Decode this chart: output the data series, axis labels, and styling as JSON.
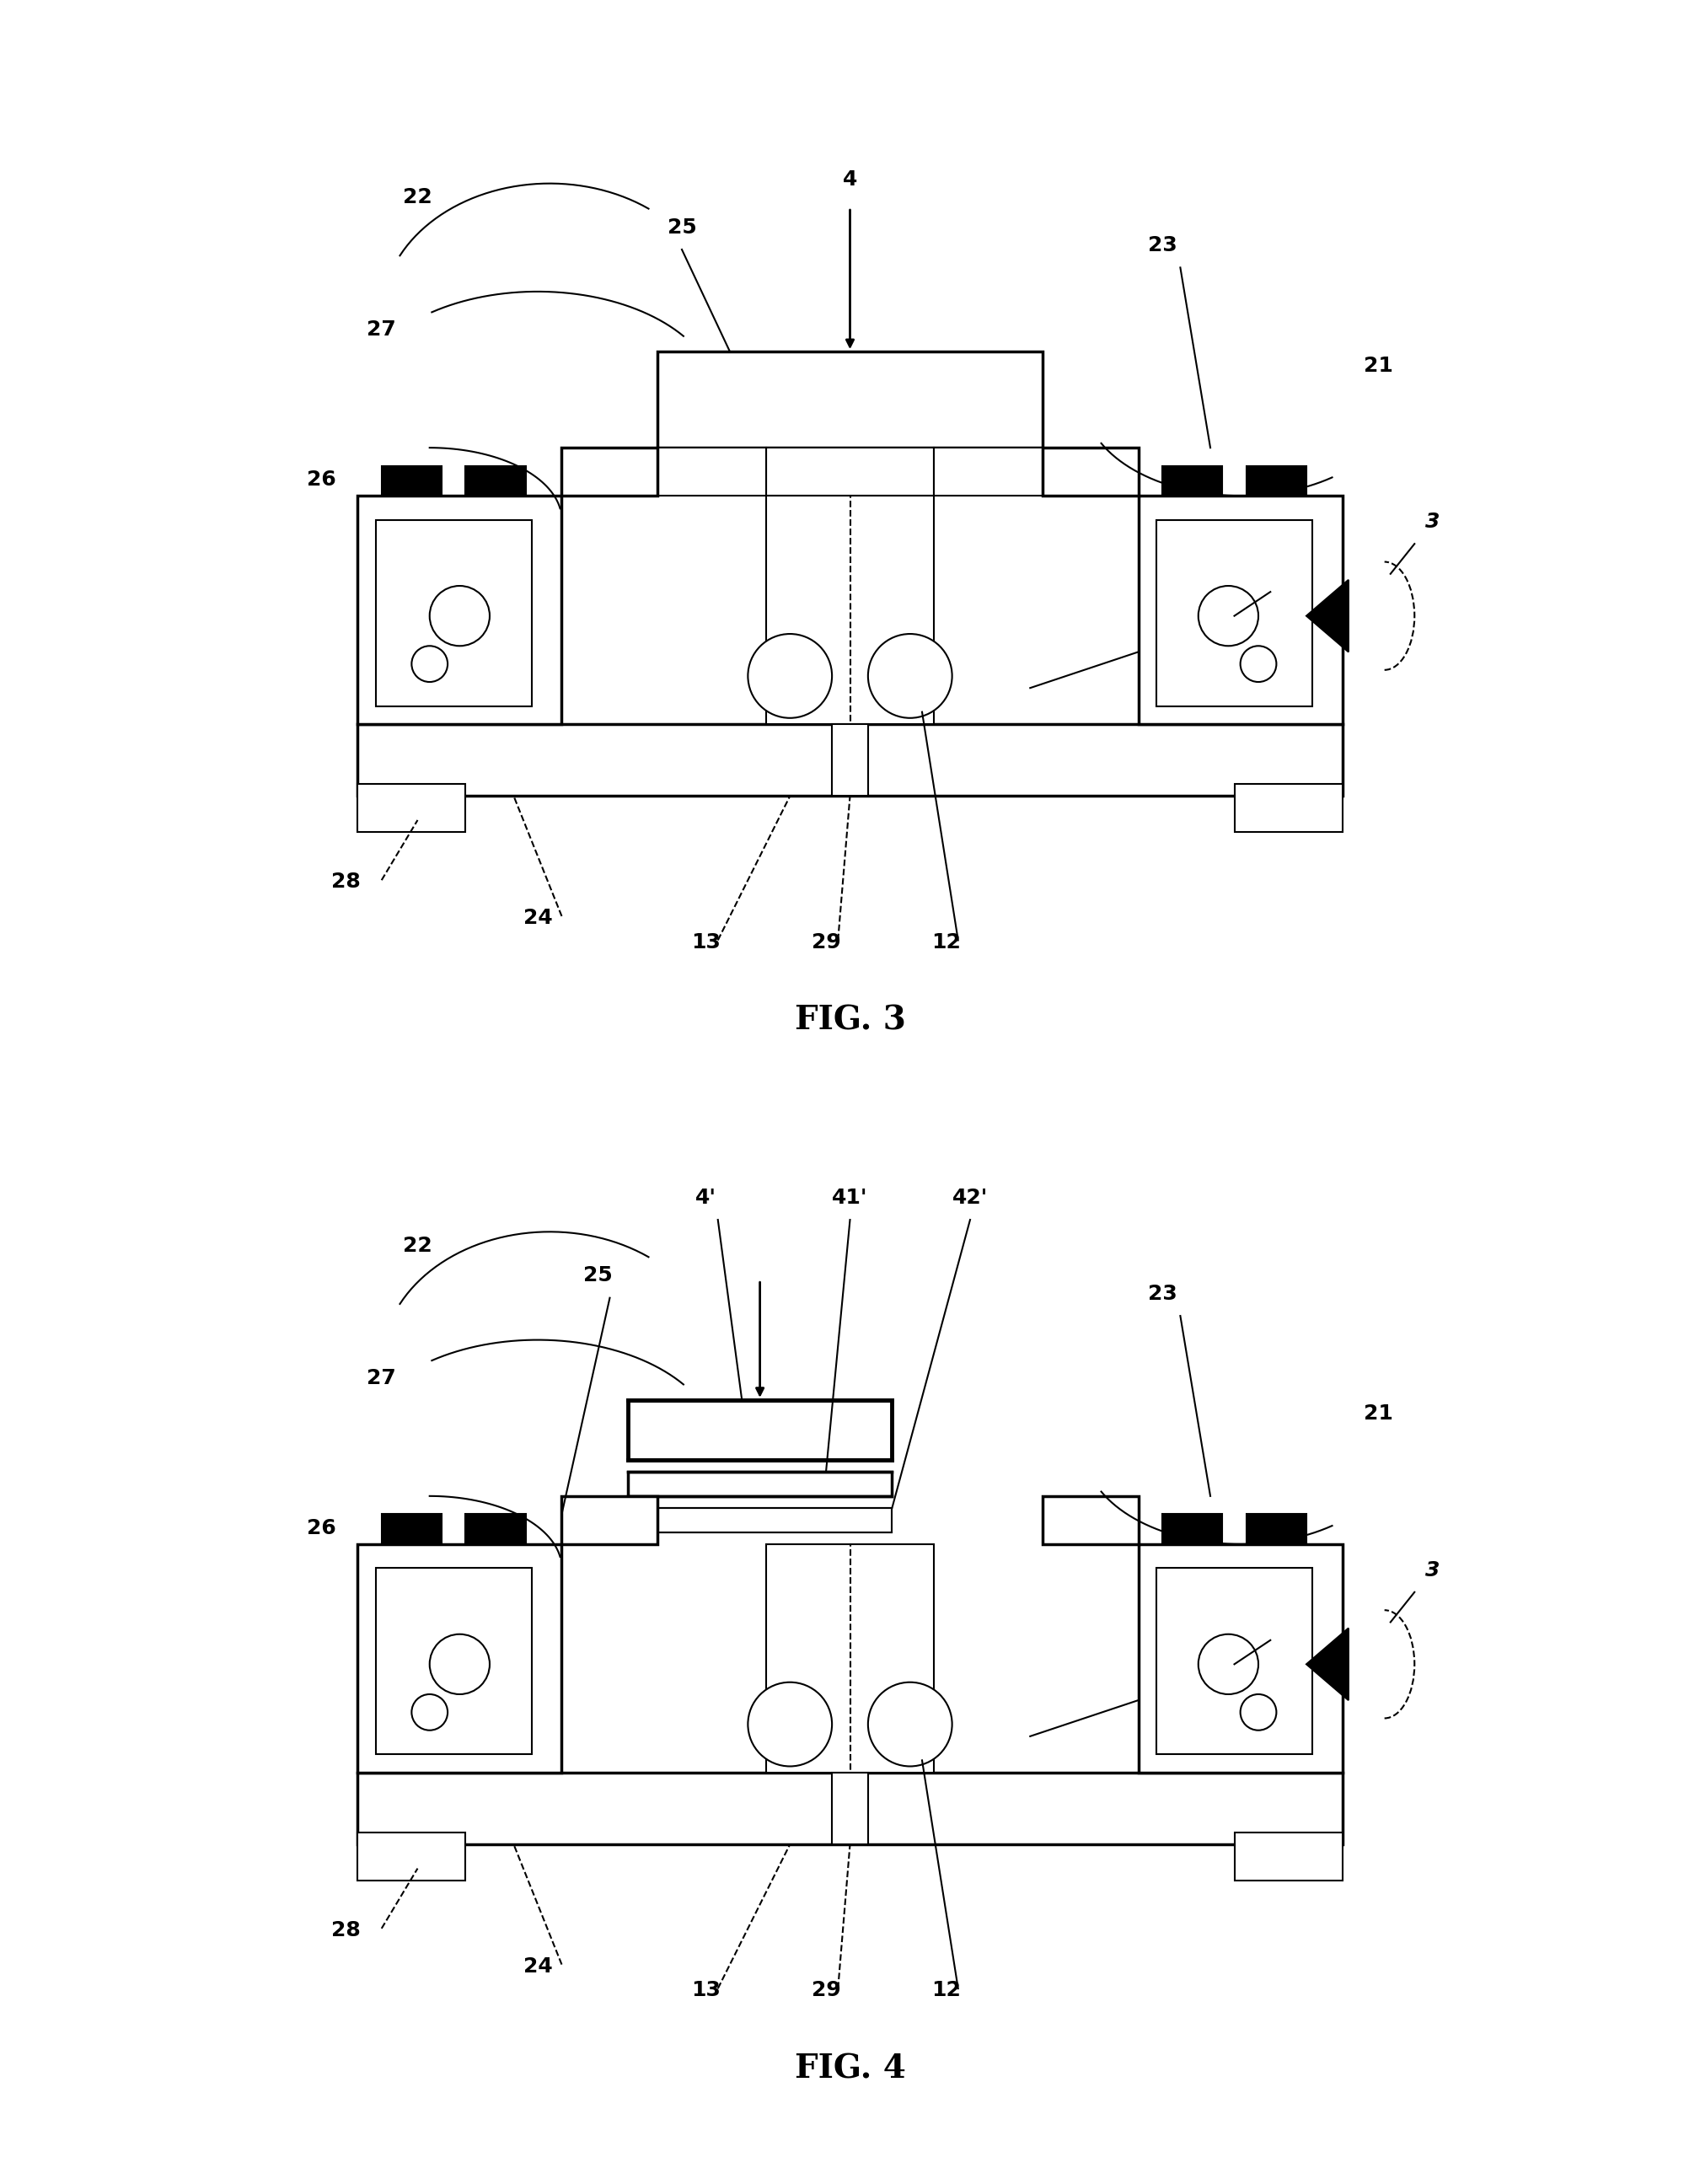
{
  "fig_width": 20.17,
  "fig_height": 25.91,
  "bg_color": "#ffffff",
  "line_color": "#000000",
  "fig3_title": "FIG. 3",
  "fig4_title": "FIG. 4",
  "label_fontsize": 18,
  "title_fontsize": 28
}
